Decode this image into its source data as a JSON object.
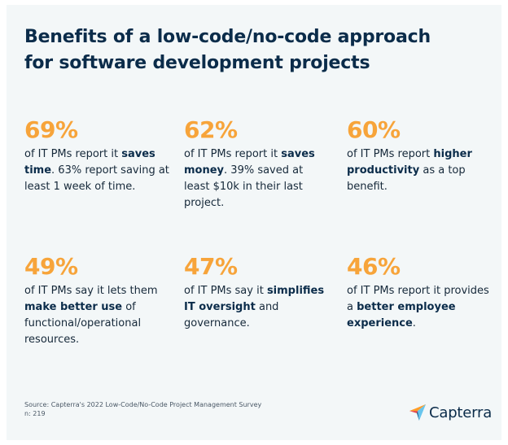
{
  "title": {
    "line1": "Benefits of a low-code/no-code approach",
    "line2": "for software development projects"
  },
  "colors": {
    "accent": "#f7a43a",
    "heading": "#0b2c4a",
    "background": "#f3f7f8"
  },
  "stats": [
    {
      "percent": "69%",
      "pre": "of IT PMs report it ",
      "bold": "saves time",
      "post": ". 63% report saving at least 1 week of time."
    },
    {
      "percent": "62%",
      "pre": "of IT PMs report it ",
      "bold": "saves money",
      "post": ". 39% saved at least $10k in their last project."
    },
    {
      "percent": "60%",
      "pre": "of IT PMs report ",
      "bold": "higher productivity",
      "post": " as a top benefit."
    },
    {
      "percent": "49%",
      "pre": "of IT PMs say it lets them ",
      "bold": "make better use",
      "post": " of functional/operational resources."
    },
    {
      "percent": "47%",
      "pre": "of IT PMs say it ",
      "bold": "simplifies IT oversight",
      "post": " and governance."
    },
    {
      "percent": "46%",
      "pre": "of IT PMs report it provides a ",
      "bold": "better employee experience",
      "post": "."
    }
  ],
  "source": {
    "line1": "Source: Capterra's 2022 Low-Code/No-Code Project Management Survey",
    "line2": "n: 219"
  },
  "logo": {
    "icon": "capterra-arrow-icon",
    "text": "Capterra"
  }
}
